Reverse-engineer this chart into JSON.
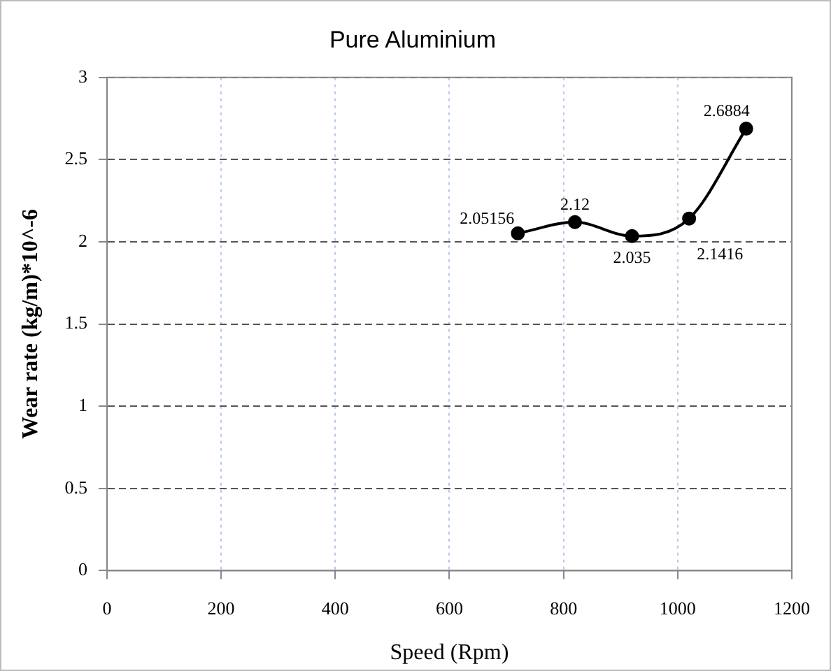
{
  "chart_data": {
    "type": "line",
    "title": "Pure Aluminium",
    "xlabel": "Speed (Rpm)",
    "ylabel": "Wear rate (kg/m)*10^-6",
    "x": [
      720,
      820,
      920,
      1020,
      1120
    ],
    "series": [
      {
        "color": "#000000",
        "values": [
          2.05156,
          2.12,
          2.035,
          2.1416,
          2.6884
        ]
      }
    ],
    "xlim": [
      0,
      1200
    ],
    "xticks": [
      0,
      200,
      400,
      600,
      800,
      1000,
      1200
    ],
    "ylim": [
      0,
      3
    ],
    "yticks": [
      0,
      0.5,
      1,
      1.5,
      2,
      2.5,
      3
    ],
    "grid": true,
    "legend": false,
    "marker": "circle",
    "line_style": "solid",
    "data_labels": true
  }
}
